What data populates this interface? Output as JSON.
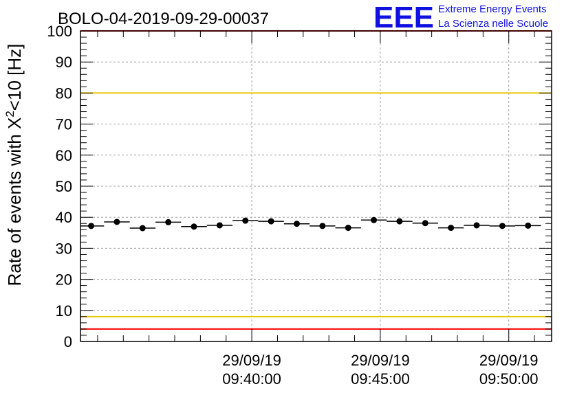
{
  "chart_data": {
    "type": "scatter",
    "title": "BOLO-04-2019-09-29-00037",
    "ylabel_parts": {
      "pre": "Rate of events with X",
      "sup": "2",
      "post": "<10 [Hz]"
    },
    "ylim": [
      0,
      100
    ],
    "yticks": [
      0,
      10,
      20,
      30,
      40,
      50,
      60,
      70,
      80,
      90,
      100
    ],
    "xlim_minutes": [
      33.333,
      51.667
    ],
    "xticks": [
      {
        "minute": 40,
        "date": "29/09/19",
        "time": "09:40:00"
      },
      {
        "minute": 45,
        "date": "29/09/19",
        "time": "09:45:00"
      },
      {
        "minute": 50,
        "date": "29/09/19",
        "time": "09:50:00"
      }
    ],
    "bin_width_minutes": 1,
    "grid": true,
    "points": [
      {
        "minute": 33.75,
        "value": 37.2
      },
      {
        "minute": 34.75,
        "value": 38.5
      },
      {
        "minute": 35.75,
        "value": 36.5
      },
      {
        "minute": 36.75,
        "value": 38.4
      },
      {
        "minute": 37.75,
        "value": 37.0
      },
      {
        "minute": 38.75,
        "value": 37.4
      },
      {
        "minute": 39.75,
        "value": 38.9
      },
      {
        "minute": 40.75,
        "value": 38.7
      },
      {
        "minute": 41.75,
        "value": 37.9
      },
      {
        "minute": 42.75,
        "value": 37.2
      },
      {
        "minute": 43.75,
        "value": 36.6
      },
      {
        "minute": 44.75,
        "value": 39.1
      },
      {
        "minute": 45.75,
        "value": 38.7
      },
      {
        "minute": 46.75,
        "value": 38.1
      },
      {
        "minute": 47.75,
        "value": 36.6
      },
      {
        "minute": 48.75,
        "value": 37.4
      },
      {
        "minute": 49.75,
        "value": 37.2
      },
      {
        "minute": 50.75,
        "value": 37.3
      }
    ],
    "reference_lines": [
      {
        "value": 100,
        "color": "#ff0000"
      },
      {
        "value": 80,
        "color": "#e8c800"
      },
      {
        "value": 8,
        "color": "#e8c800"
      },
      {
        "value": 4,
        "color": "#ff0000"
      }
    ]
  },
  "logo": {
    "letters": "EEE",
    "line1": "Extreme Energy Events",
    "line2": "La Scienza nelle Scuole",
    "color": "#1010e0"
  }
}
